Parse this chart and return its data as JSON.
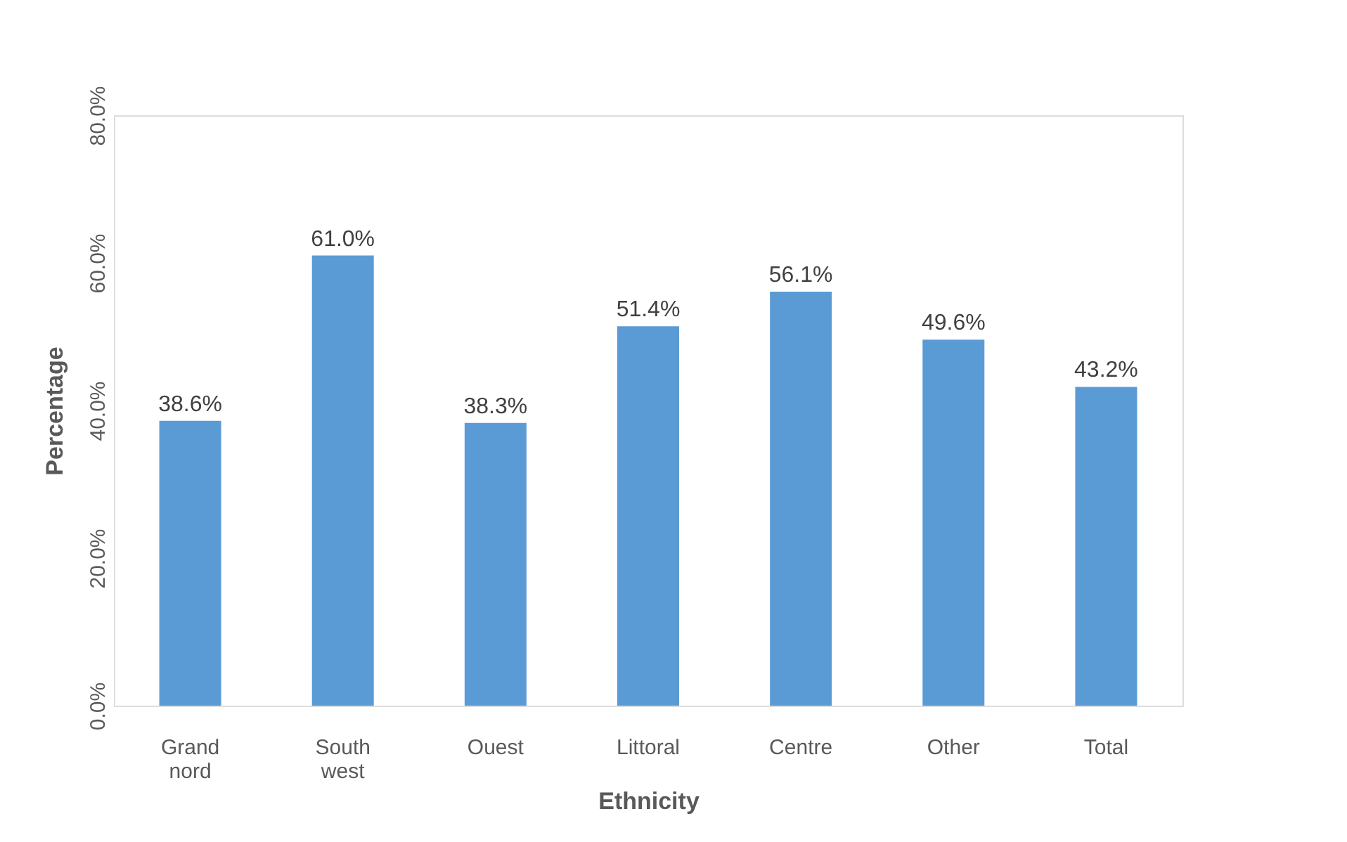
{
  "chart_data": {
    "type": "bar",
    "xlabel": "Ethnicity",
    "ylabel": "Percentage",
    "categories": [
      "Grand nord",
      "South west",
      "Ouest",
      "Littoral",
      "Centre",
      "Other",
      "Total"
    ],
    "values": [
      38.6,
      61.0,
      38.3,
      51.4,
      56.1,
      49.6,
      43.2
    ],
    "value_labels": [
      "38.6%",
      "61.0%",
      "38.3%",
      "51.4%",
      "56.1%",
      "49.6%",
      "43.2%"
    ],
    "color": "#5b9bd5",
    "ylim": [
      0,
      80
    ],
    "yticks": [
      {
        "value": 0,
        "label": "0.0%"
      },
      {
        "value": 20,
        "label": "20.0%"
      },
      {
        "value": 40,
        "label": "40.0%"
      },
      {
        "value": 60,
        "label": "60.0%"
      },
      {
        "value": 80,
        "label": "80.0%"
      }
    ],
    "grid": false
  }
}
